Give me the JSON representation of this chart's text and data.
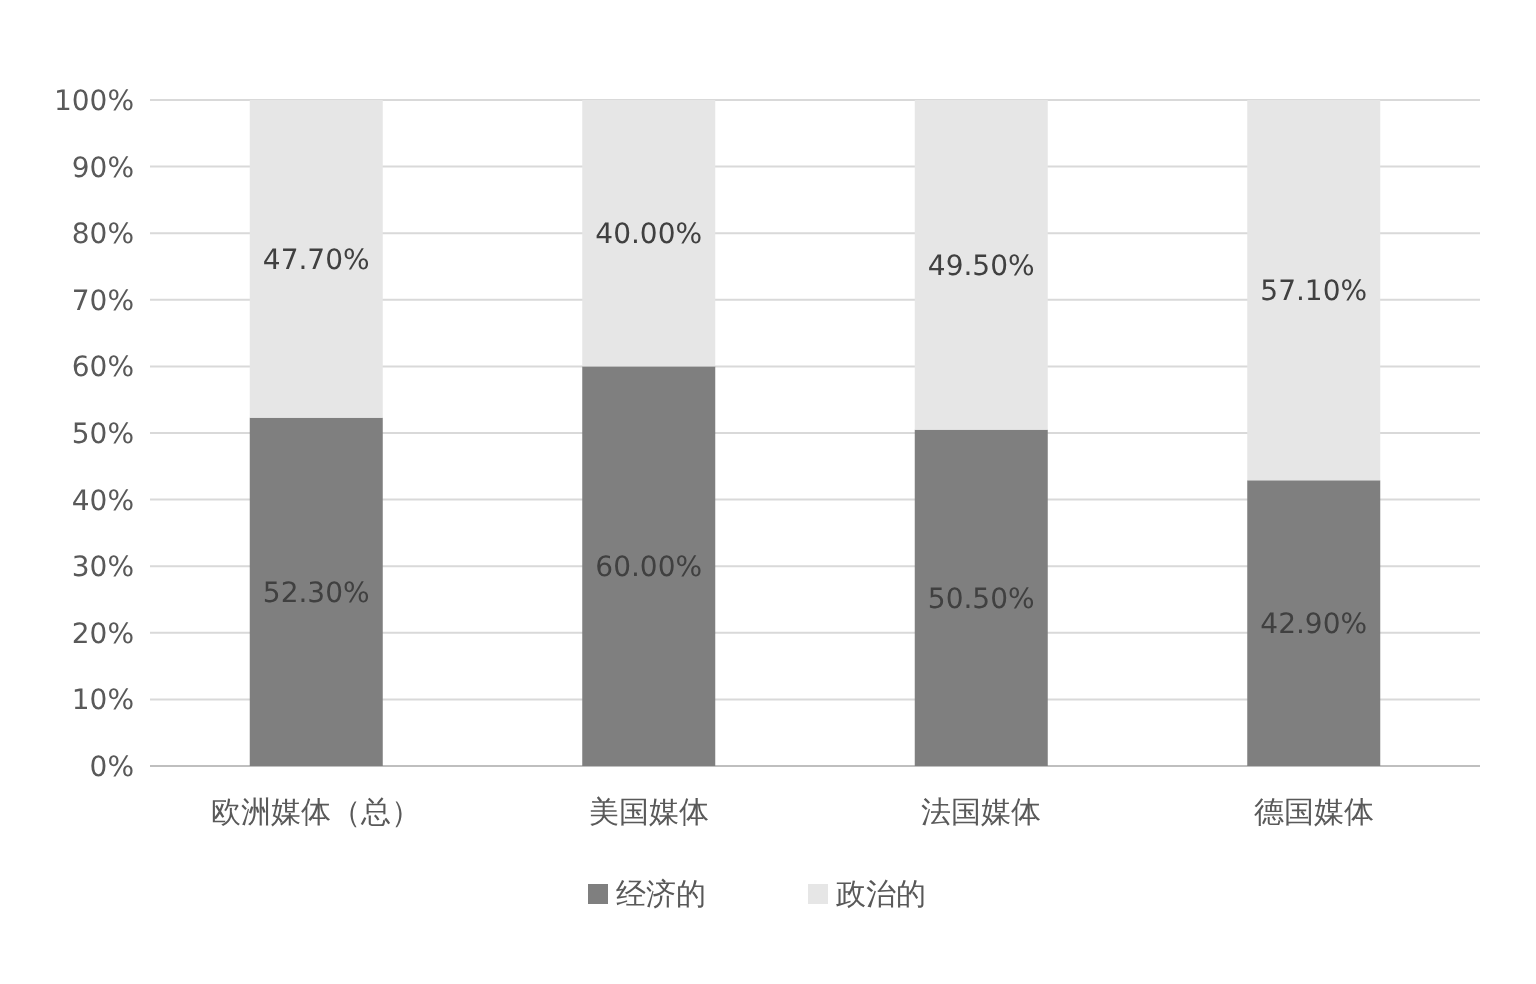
{
  "chart_data": {
    "type": "bar",
    "stacked": true,
    "categories": [
      "欧洲媒体（总）",
      "美国媒体",
      "法国媒体",
      "德国媒体"
    ],
    "series": [
      {
        "name": "经济的",
        "color": "#7f7f7f",
        "values": [
          52.3,
          60.0,
          50.5,
          42.9
        ],
        "value_labels": [
          "52.30%",
          "60.00%",
          "50.50%",
          "42.90%"
        ]
      },
      {
        "name": "政治的",
        "color": "#e6e6e6",
        "values": [
          47.7,
          40.0,
          49.5,
          57.1
        ],
        "value_labels": [
          "47.70%",
          "40.00%",
          "49.50%",
          "57.10%"
        ]
      }
    ],
    "ylim": [
      0,
      100
    ],
    "yticks": [
      {
        "value": 0,
        "label": "0%"
      },
      {
        "value": 10,
        "label": "10%"
      },
      {
        "value": 20,
        "label": "20%"
      },
      {
        "value": 30,
        "label": "30%"
      },
      {
        "value": 40,
        "label": "40%"
      },
      {
        "value": 50,
        "label": "50%"
      },
      {
        "value": 60,
        "label": "60%"
      },
      {
        "value": 70,
        "label": "70%"
      },
      {
        "value": 80,
        "label": "80%"
      },
      {
        "value": 90,
        "label": "90%"
      },
      {
        "value": 100,
        "label": "100%"
      }
    ],
    "grid": "y",
    "legend": "bottom"
  }
}
